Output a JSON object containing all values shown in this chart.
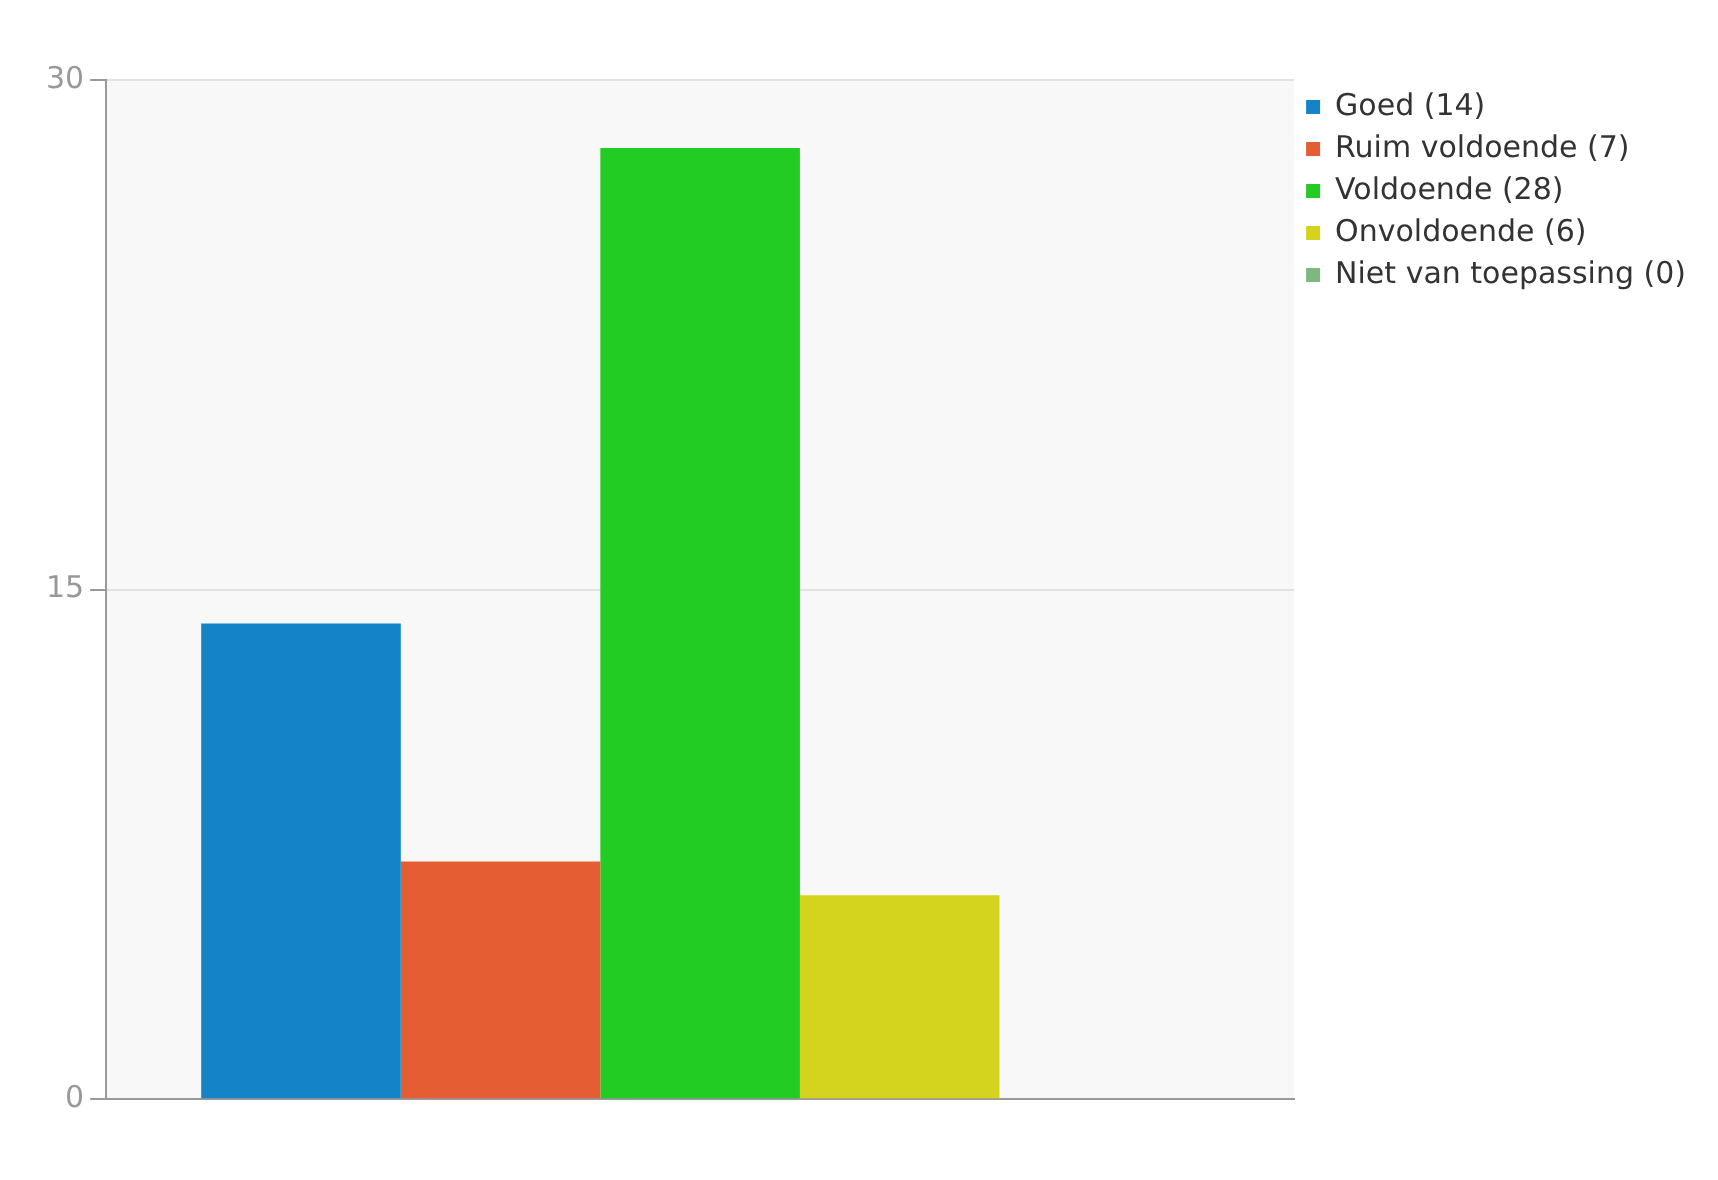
{
  "chart_data": {
    "type": "bar",
    "categories": [
      null
    ],
    "series": [
      {
        "name": "Goed (14)",
        "color": "#1583c8",
        "values": [
          14
        ]
      },
      {
        "name": "Ruim voldoende (7)",
        "color": "#e55e33",
        "values": [
          7
        ]
      },
      {
        "name": "Voldoende (28)",
        "color": "#22cc22",
        "values": [
          28
        ]
      },
      {
        "name": "Onvoldoende (6)",
        "color": "#d4d41e",
        "values": [
          6
        ]
      },
      {
        "name": "Niet van toepassing (0)",
        "color": "#7fb87f",
        "values": [
          0
        ]
      }
    ],
    "ylim": [
      0,
      30
    ],
    "yticks": [
      0,
      15,
      30
    ],
    "grid": "y",
    "legend": "top right"
  }
}
